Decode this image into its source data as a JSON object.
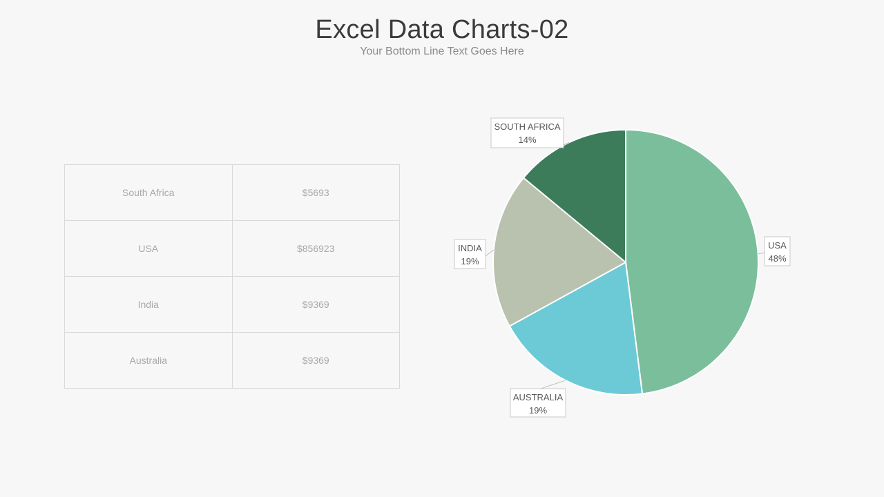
{
  "header": {
    "title": "Excel Data Charts-02",
    "subtitle": "Your Bottom Line Text Goes Here"
  },
  "table": {
    "rows": [
      {
        "country": "South Africa",
        "value": "$5693"
      },
      {
        "country": "USA",
        "value": "$856923"
      },
      {
        "country": "India",
        "value": "$9369"
      },
      {
        "country": "Australia",
        "value": "$9369"
      }
    ]
  },
  "chart_data": {
    "type": "pie",
    "title": "",
    "start_angle_deg": 0,
    "direction": "clockwise",
    "slices": [
      {
        "label": "USA",
        "percent_label": "48%",
        "value": 48,
        "color": "#7bbe9b"
      },
      {
        "label": "AUSTRALIA",
        "percent_label": "19%",
        "value": 19,
        "color": "#6ccad6"
      },
      {
        "label": "INDIA",
        "percent_label": "19%",
        "value": 19,
        "color": "#b8c2ae"
      },
      {
        "label": "SOUTH AFRICA",
        "percent_label": "14%",
        "value": 14,
        "color": "#3c7c5b"
      }
    ]
  }
}
